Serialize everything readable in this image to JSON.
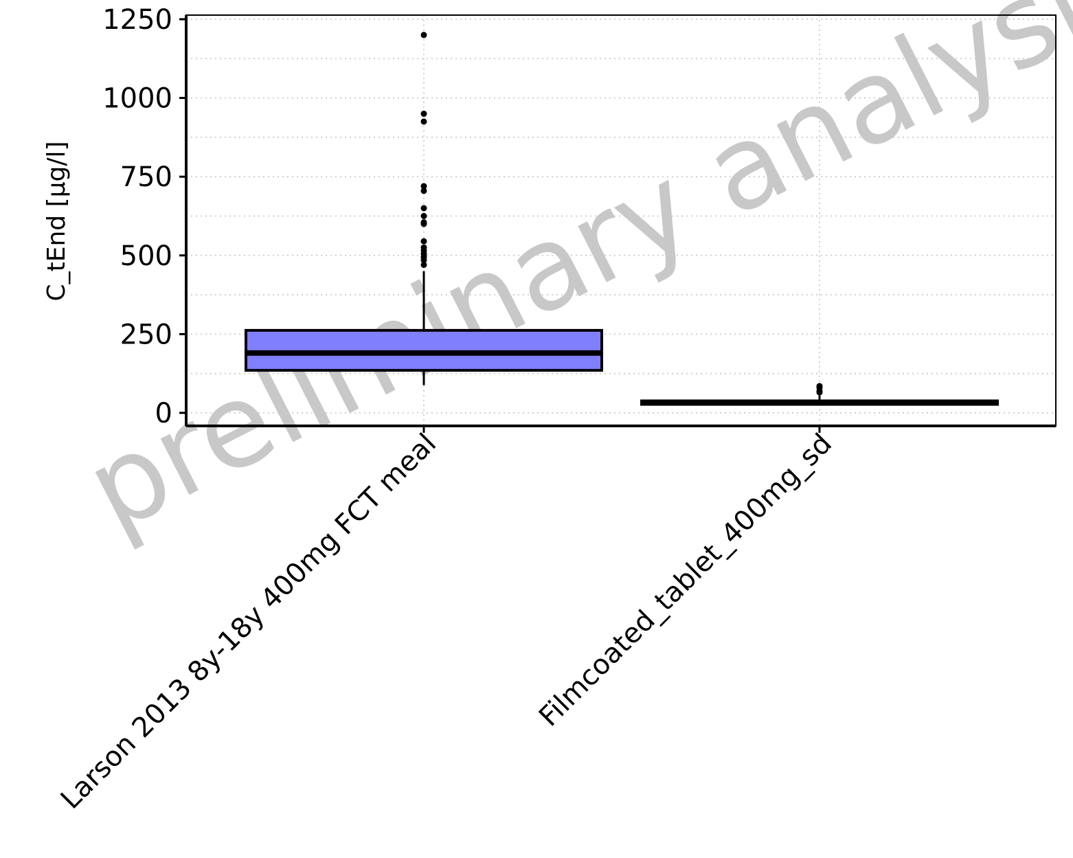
{
  "chart_data": {
    "type": "boxplot",
    "ylabel": "C_tEnd [µg/l]",
    "xlabel": "",
    "ylim": [
      -40,
      1260
    ],
    "yticks": [
      0,
      250,
      500,
      750,
      1000,
      1250
    ],
    "grid": true,
    "watermark": "preliminary analysis",
    "categories": [
      "Larson 2013 8y-18y 400mg FCT meal",
      "Filmcoated_tablet_400mg_sd"
    ],
    "boxes": [
      {
        "category": "Larson 2013 8y-18y 400mg FCT meal",
        "q1": 135,
        "median": 190,
        "q3": 262,
        "whisker_low": 88,
        "whisker_high": 450,
        "outliers": [
          470,
          485,
          495,
          505,
          515,
          525,
          545,
          600,
          605,
          625,
          650,
          705,
          720,
          925,
          950,
          1200
        ],
        "fill": "#8080ff"
      },
      {
        "category": "Filmcoated_tablet_400mg_sd",
        "q1": 27,
        "median": 33,
        "q3": 38,
        "whisker_low": 24,
        "whisker_high": 55,
        "outliers": [
          65,
          70,
          80,
          85
        ],
        "fill": "#8080ff"
      }
    ]
  }
}
